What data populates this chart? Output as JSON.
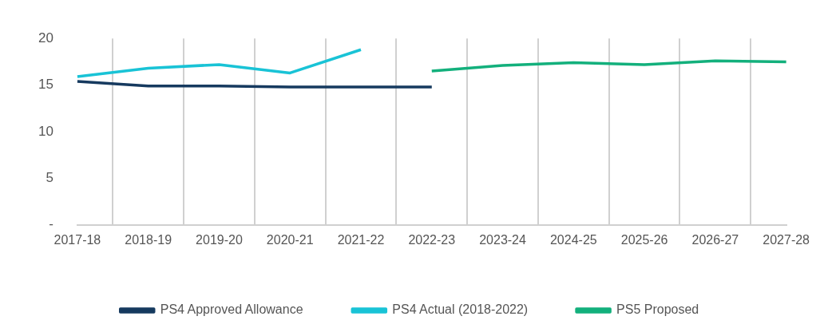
{
  "chart_data": {
    "type": "line",
    "categories": [
      "2017-18",
      "2018-19",
      "2019-20",
      "2020-21",
      "2021-22",
      "2022-23",
      "2023-24",
      "2024-25",
      "2025-26",
      "2026-27",
      "2027-28"
    ],
    "series": [
      {
        "name": "PS4 Approved Allowance",
        "color": "#163a5f",
        "values": [
          15.4,
          14.9,
          14.9,
          14.8,
          14.8,
          14.8,
          null,
          null,
          null,
          null,
          null
        ]
      },
      {
        "name": "PS4 Actual (2018-2022)",
        "color": "#19c3d6",
        "values": [
          15.9,
          16.8,
          17.2,
          16.3,
          18.8,
          null,
          null,
          null,
          null,
          null,
          null
        ]
      },
      {
        "name": "PS5 Proposed",
        "color": "#13b07c",
        "values": [
          null,
          null,
          null,
          null,
          null,
          16.5,
          17.1,
          17.4,
          17.2,
          17.6,
          17.5
        ]
      }
    ],
    "ylim": [
      0,
      20
    ],
    "yticks": [
      {
        "value": 0,
        "label": "-"
      },
      5,
      10,
      15,
      20
    ],
    "grid": "x",
    "legend": "bottom",
    "marker": "none",
    "line_style": "solid"
  }
}
